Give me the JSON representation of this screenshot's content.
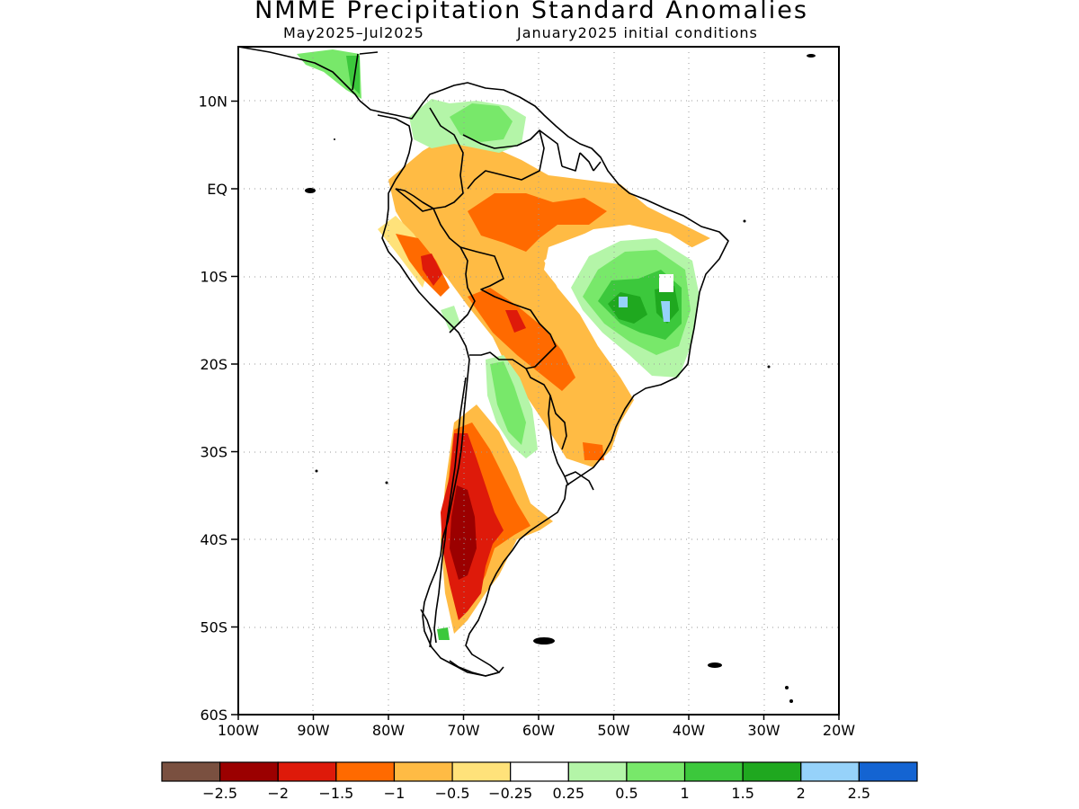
{
  "title": "NMME Precipitation Standard Anomalies",
  "subtitle_period": "May2025–Jul2025",
  "subtitle_ic": "January2025 initial conditions",
  "lat_ticks": [
    {
      "value": 10,
      "label": "10N"
    },
    {
      "value": 0,
      "label": "EQ"
    },
    {
      "value": -10,
      "label": "10S"
    },
    {
      "value": -20,
      "label": "20S"
    },
    {
      "value": -30,
      "label": "30S"
    },
    {
      "value": -40,
      "label": "40S"
    },
    {
      "value": -50,
      "label": "50S"
    },
    {
      "value": -60,
      "label": "60S"
    }
  ],
  "lon_ticks": [
    {
      "value": -100,
      "label": "100W"
    },
    {
      "value": -90,
      "label": "90W"
    },
    {
      "value": -80,
      "label": "80W"
    },
    {
      "value": -70,
      "label": "70W"
    },
    {
      "value": -60,
      "label": "60W"
    },
    {
      "value": -50,
      "label": "50W"
    },
    {
      "value": -40,
      "label": "40W"
    },
    {
      "value": -30,
      "label": "30W"
    },
    {
      "value": -20,
      "label": "20W"
    }
  ],
  "colorbar": {
    "colors": [
      "#7a5040",
      "#9b0000",
      "#de1a0a",
      "#ff6a00",
      "#ffbb44",
      "#ffe27a",
      "#ffffff",
      "#b4f5a8",
      "#78e86a",
      "#3cc83c",
      "#1fa81f",
      "#96d2fa",
      "#1464d2"
    ],
    "labels": [
      "−2.5",
      "−2",
      "−1.5",
      "−1",
      "−0.5",
      "−0.25",
      "0.25",
      "0.5",
      "1",
      "1.5",
      "2",
      "2.5"
    ]
  }
}
